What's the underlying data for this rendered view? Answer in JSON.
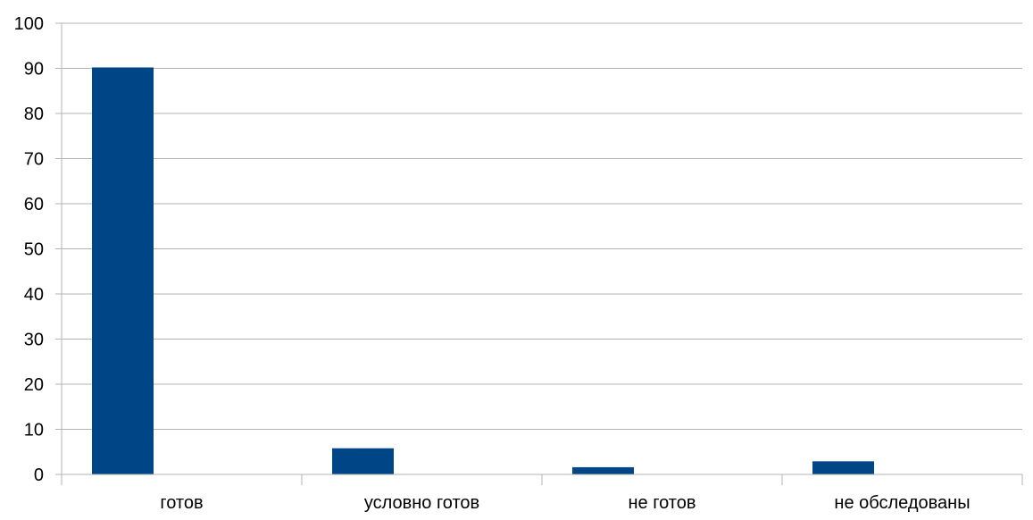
{
  "chart_data": {
    "type": "bar",
    "title": "",
    "xlabel": "",
    "ylabel": "",
    "categories": [
      "готов",
      "условно готов",
      "не готов",
      "не обследованы"
    ],
    "series": [
      {
        "values": [
          90.2,
          5.8,
          1.6,
          2.9
        ]
      }
    ],
    "ylim": [
      0,
      100
    ],
    "yticks": [
      0,
      10,
      20,
      30,
      40,
      50,
      60,
      70,
      80,
      90,
      100
    ],
    "grid": true,
    "legend": "none",
    "colors": {
      "bar": "#004586",
      "grid": "#b3b3b3",
      "axis": "#b3b3b3",
      "text": "#000000"
    }
  }
}
